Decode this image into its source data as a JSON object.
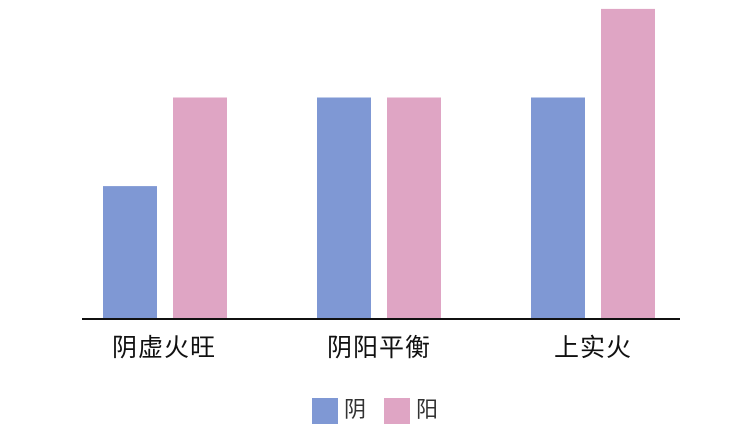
{
  "chart_data": {
    "type": "bar",
    "categories": [
      "阴虚火旺",
      "阴阳平衡",
      "上实火"
    ],
    "series": [
      {
        "name": "阴",
        "values": [
          3,
          5,
          5
        ],
        "color": "#7f98d4"
      },
      {
        "name": "阳",
        "values": [
          5,
          5,
          7
        ],
        "color": "#dfa5c4"
      }
    ],
    "ylim": [
      0,
      7
    ],
    "grid": false,
    "legend_position": "bottom-center"
  },
  "colors": {
    "axis": "#111111"
  }
}
